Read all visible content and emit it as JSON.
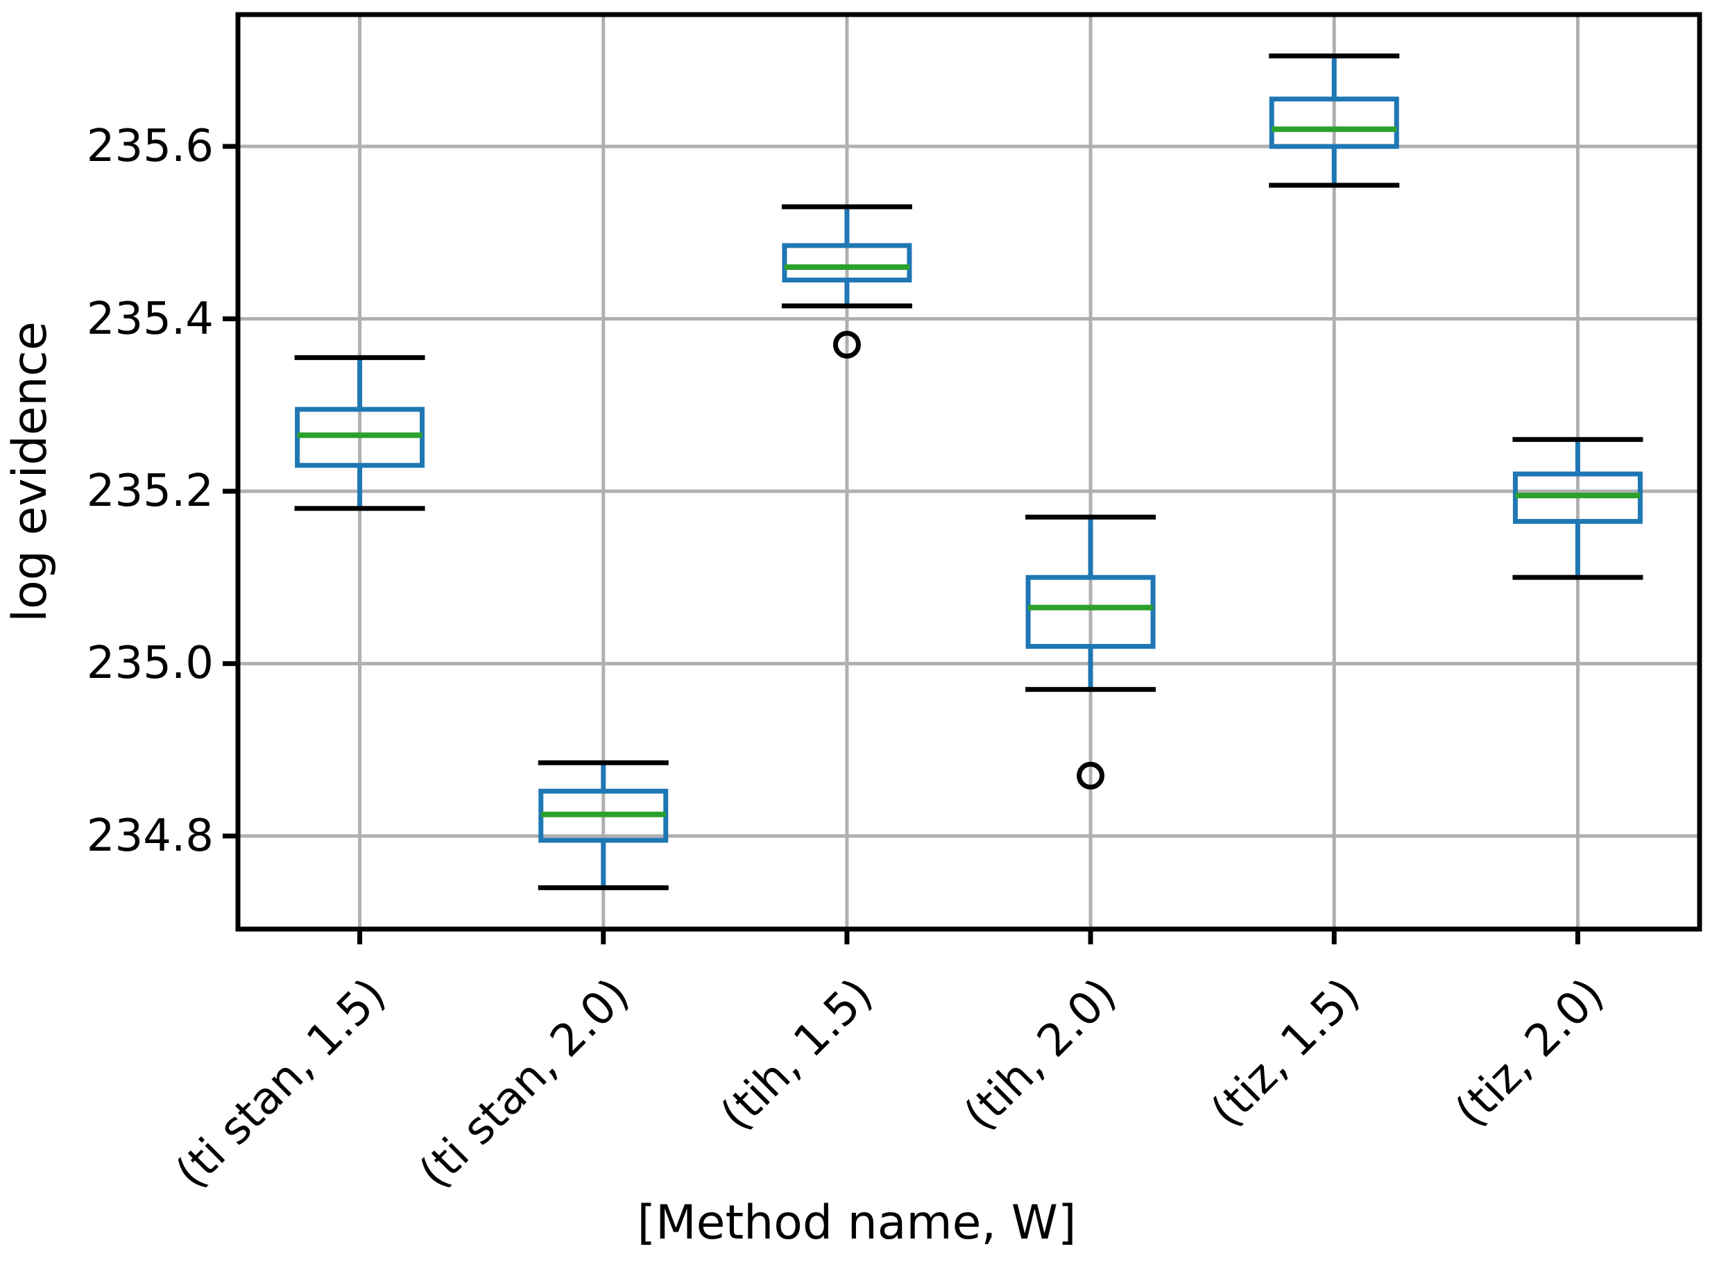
{
  "figure": {
    "background": "#ffffff"
  },
  "chart_data": {
    "type": "boxplot",
    "title": "",
    "xlabel": "[Method name, W]",
    "ylabel": "log evidence",
    "categories": [
      "(ti stan, 1.5)",
      "(ti stan, 2.0)",
      "(tih, 1.5)",
      "(tih, 2.0)",
      "(tiz, 1.5)",
      "(tiz, 2.0)"
    ],
    "yticks": [
      234.8,
      235.0,
      235.2,
      235.4,
      235.6
    ],
    "ytick_labels": [
      "234.8",
      "235.0",
      "235.2",
      "235.4",
      "235.6"
    ],
    "ylim": [
      234.692,
      235.753
    ],
    "grid": true,
    "boxes": [
      {
        "label": "(ti stan, 1.5)",
        "whisker_low": 235.18,
        "q1": 235.23,
        "median": 235.265,
        "q3": 235.295,
        "whisker_high": 235.355,
        "outliers": []
      },
      {
        "label": "(ti stan, 2.0)",
        "whisker_low": 234.74,
        "q1": 234.795,
        "median": 234.825,
        "q3": 234.852,
        "whisker_high": 234.885,
        "outliers": []
      },
      {
        "label": "(tih, 1.5)",
        "whisker_low": 235.415,
        "q1": 235.445,
        "median": 235.46,
        "q3": 235.485,
        "whisker_high": 235.53,
        "outliers": [
          235.37
        ]
      },
      {
        "label": "(tih, 2.0)",
        "whisker_low": 234.97,
        "q1": 235.02,
        "median": 235.065,
        "q3": 235.1,
        "whisker_high": 235.17,
        "outliers": [
          234.87
        ]
      },
      {
        "label": "(tiz, 1.5)",
        "whisker_low": 235.555,
        "q1": 235.6,
        "median": 235.62,
        "q3": 235.655,
        "whisker_high": 235.705,
        "outliers": []
      },
      {
        "label": "(tiz, 2.0)",
        "whisker_low": 235.1,
        "q1": 235.165,
        "median": 235.195,
        "q3": 235.22,
        "whisker_high": 235.26,
        "outliers": []
      }
    ],
    "colors": {
      "box": "#1f77b4",
      "whisker": "#1f77b4",
      "median": "#2ca02c",
      "cap": "#000000",
      "outlier": "#000000",
      "grid": "#b0b0b0",
      "spine": "#000000",
      "text": "#000000"
    }
  }
}
